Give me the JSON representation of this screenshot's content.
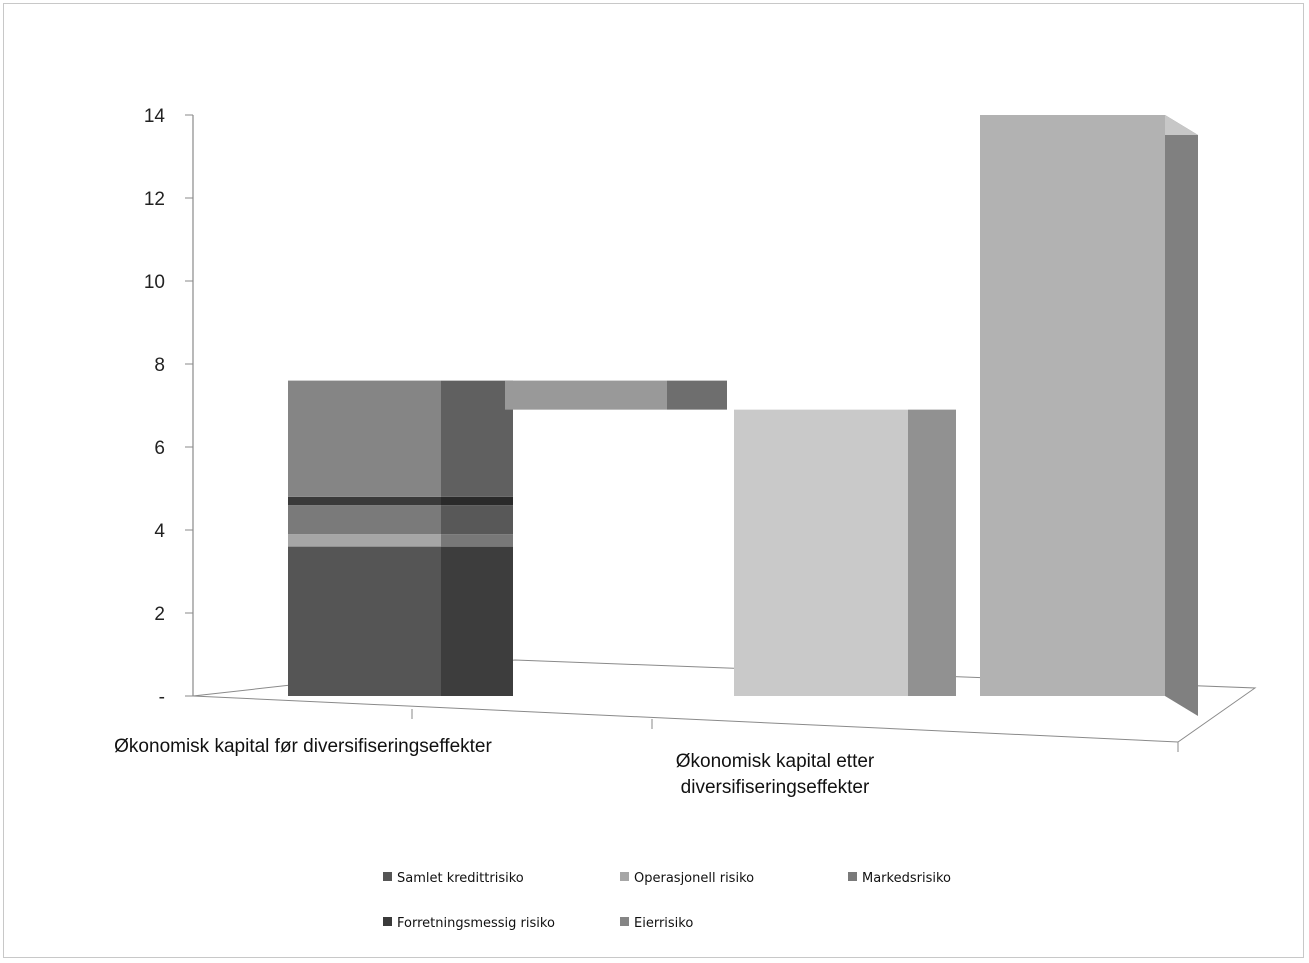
{
  "chart_data": {
    "type": "bar",
    "style": "3d-stacked-waterfall",
    "title": "",
    "xlabel": "",
    "ylabel": "",
    "ylim": [
      0,
      14
    ],
    "yticks": [
      {
        "value": 0,
        "label": "-"
      },
      {
        "value": 2,
        "label": "2"
      },
      {
        "value": 4,
        "label": "4"
      },
      {
        "value": 6,
        "label": "6"
      },
      {
        "value": 8,
        "label": "8"
      },
      {
        "value": 10,
        "label": "10"
      },
      {
        "value": 12,
        "label": "12"
      },
      {
        "value": 14,
        "label": "14"
      }
    ],
    "categories": [
      "Økonomisk kapital før diversifiseringseffekter",
      "Økonomisk kapital etter diversifiseringseffekter"
    ],
    "category_lines": [
      [
        "Økonomisk kapital før diversifiseringseffekter"
      ],
      [
        "Økonomisk kapital etter",
        "diversifiseringseffekter"
      ]
    ],
    "stacked_bar": {
      "segments": [
        {
          "series": "Samlet kredittrisiko",
          "value": 3.6
        },
        {
          "series": "Operasjonell risiko",
          "value": 0.3
        },
        {
          "series": "Markedsrisiko",
          "value": 0.7
        },
        {
          "series": "Forretningsmessig risiko",
          "value": 0.2
        },
        {
          "series": "Eierrisiko",
          "value": 2.8
        }
      ]
    },
    "floating_bar": {
      "from": 6.9,
      "to": 7.6
    },
    "single_bars": [
      {
        "value": 6.9
      },
      {
        "value": 14.0
      }
    ],
    "grid": false,
    "legend": {
      "position": "bottom",
      "entries": [
        "Samlet kredittrisiko",
        "Operasjonell risiko",
        "Markedsrisiko",
        "Forretningsmessig risiko",
        "Eierrisiko"
      ]
    },
    "colors": {
      "Samlet kredittrisiko": "#555555",
      "Operasjonell risiko": "#a6a6a6",
      "Markedsrisiko": "#7a7a7a",
      "Forretningsmessig risiko": "#3a3a3a",
      "Eierrisiko": "#858585",
      "bar_light": "#c9c9c9",
      "bar_tall": "#b2b2b2",
      "floating": "#999999"
    }
  }
}
